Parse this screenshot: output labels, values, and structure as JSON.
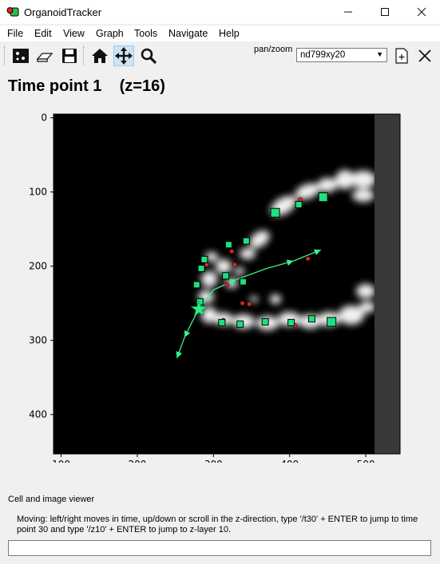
{
  "window": {
    "title": "OrganoidTracker"
  },
  "menu": [
    "File",
    "Edit",
    "View",
    "Graph",
    "Tools",
    "Navigate",
    "Help"
  ],
  "toolbar": {
    "icons": [
      "graph-icon",
      "eraser-icon",
      "save-icon",
      "home-icon",
      "pan-icon",
      "zoom-icon",
      "new-tab-icon",
      "close-icon"
    ],
    "mode_label": "pan/zoom",
    "experiment_selected": "nd799xy20"
  },
  "viewer": {
    "title": "Time point 1    (z=16)"
  },
  "chart_data": {
    "type": "scatter",
    "x_ticks": [
      100,
      200,
      300,
      400,
      500
    ],
    "y_ticks": [
      0,
      100,
      200,
      300,
      400
    ],
    "xlim": [
      90,
      545
    ],
    "ylim": [
      453,
      -5
    ],
    "image_extent_x": [
      90,
      512
    ],
    "background": "#000000",
    "cells": [
      {
        "x": 381,
        "y": 128,
        "size": "large"
      },
      {
        "x": 444,
        "y": 107,
        "size": "large"
      },
      {
        "x": 412,
        "y": 117
      },
      {
        "x": 343,
        "y": 166
      },
      {
        "x": 320,
        "y": 171
      },
      {
        "x": 288,
        "y": 191
      },
      {
        "x": 284,
        "y": 203
      },
      {
        "x": 316,
        "y": 213
      },
      {
        "x": 278,
        "y": 225
      },
      {
        "x": 282,
        "y": 248
      },
      {
        "x": 311,
        "y": 276
      },
      {
        "x": 335,
        "y": 278
      },
      {
        "x": 368,
        "y": 275
      },
      {
        "x": 402,
        "y": 276
      },
      {
        "x": 429,
        "y": 271
      },
      {
        "x": 455,
        "y": 275,
        "size": "large"
      },
      {
        "x": 339,
        "y": 221
      }
    ],
    "dead_cells": [
      {
        "x": 291,
        "y": 198
      },
      {
        "x": 328,
        "y": 198
      },
      {
        "x": 324,
        "y": 180
      },
      {
        "x": 318,
        "y": 225
      },
      {
        "x": 424,
        "y": 190
      },
      {
        "x": 414,
        "y": 110
      },
      {
        "x": 338,
        "y": 250
      },
      {
        "x": 347,
        "y": 251
      },
      {
        "x": 313,
        "y": 273
      },
      {
        "x": 407,
        "y": 280
      },
      {
        "x": 279,
        "y": 262
      }
    ],
    "star": {
      "x": 281,
      "y": 258
    },
    "tracks": [
      {
        "points": [
          [
            281,
            258
          ],
          [
            300,
            232
          ],
          [
            330,
            218
          ],
          [
            370,
            203
          ],
          [
            405,
            193
          ],
          [
            441,
            178
          ]
        ]
      },
      {
        "points": [
          [
            281,
            258
          ],
          [
            272,
            275
          ],
          [
            262,
            296
          ],
          [
            252,
            324
          ]
        ]
      }
    ]
  },
  "status": {
    "viewer_name": "Cell and image viewer",
    "help": "Moving: left/right moves in time, up/down or scroll in the z-direction, type '/t30' + ENTER to jump to time point 30 and type '/z10' + ENTER to jump to z-layer 10.",
    "command_value": ""
  }
}
